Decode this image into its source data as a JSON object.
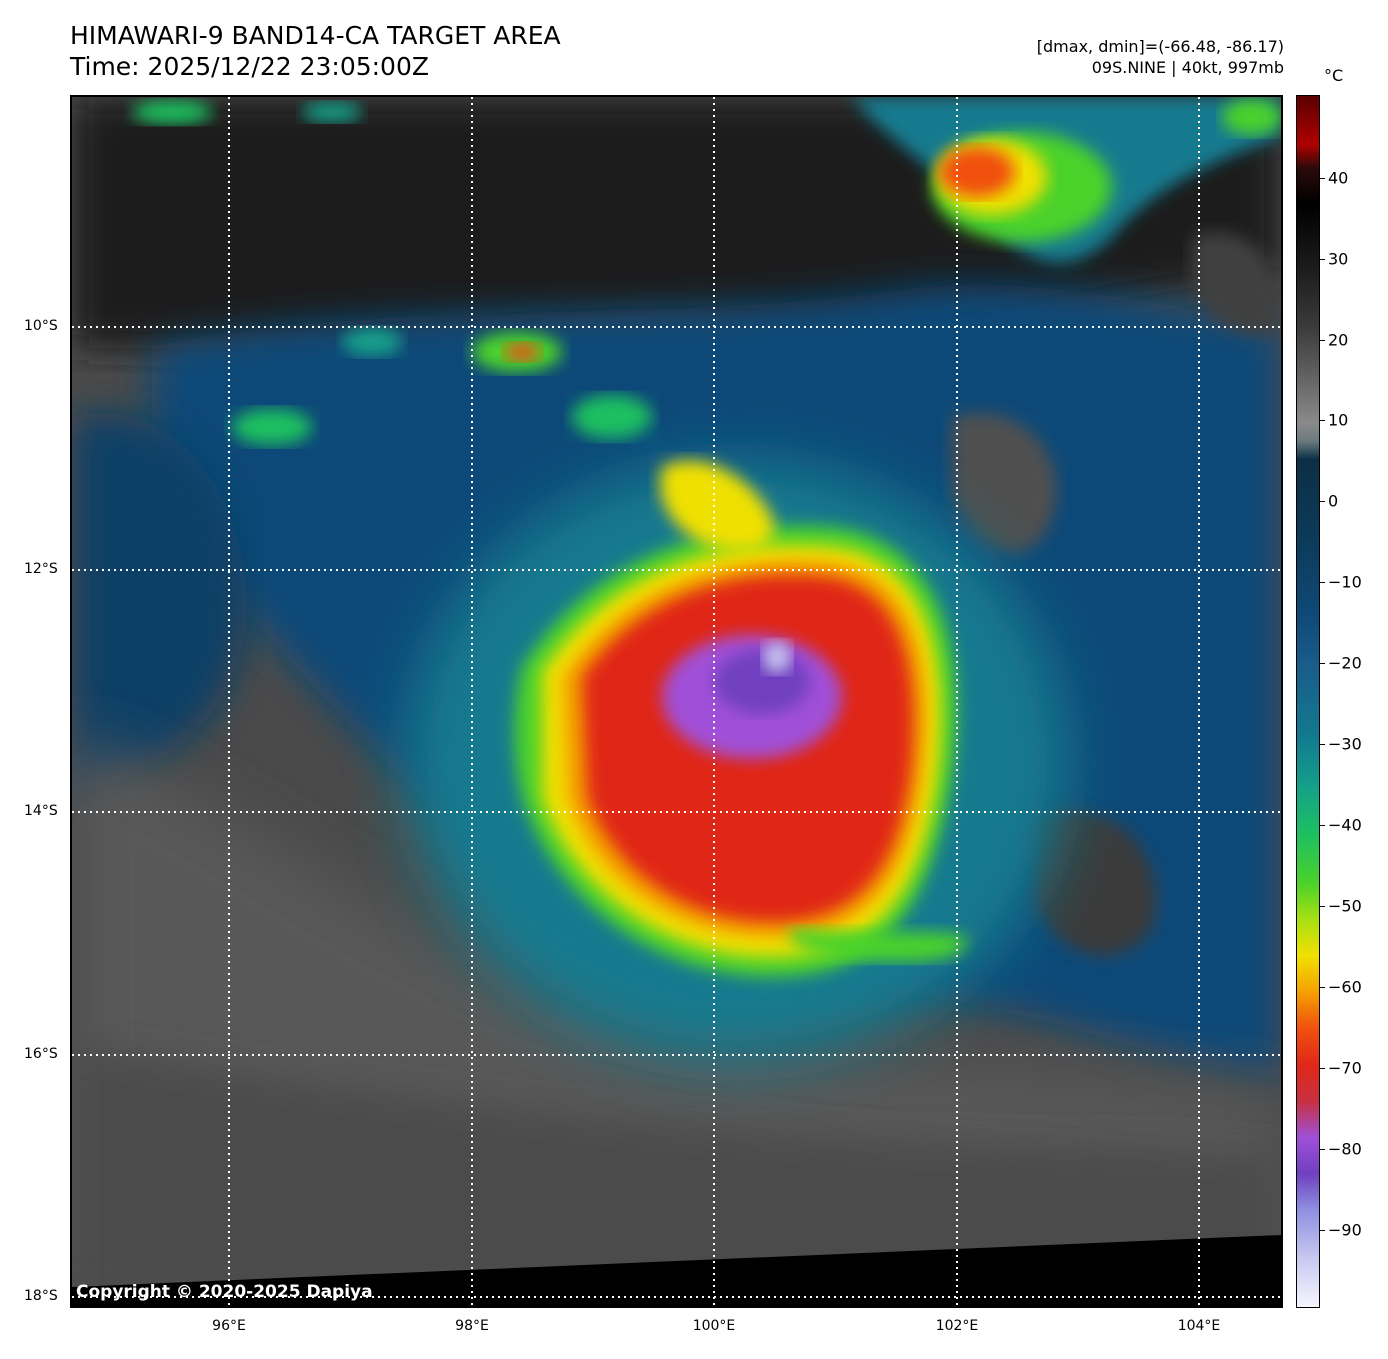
{
  "header": {
    "title_line1": "HIMAWARI-9 BAND14-CA TARGET AREA",
    "title_line2": "Time: 2025/12/22 23:05:00Z",
    "dminmax": "[dmax, dmin]=(-66.48, -86.17)",
    "storm": "09S.NINE | 40kt, 997mb"
  },
  "colorbar": {
    "unit": "°C",
    "ticks": [
      "40",
      "30",
      "20",
      "10",
      "0",
      "−10",
      "−20",
      "−30",
      "−40",
      "−50",
      "−60",
      "−70",
      "−80",
      "−90"
    ]
  },
  "axes": {
    "lat_labels": [
      "10°S",
      "12°S",
      "14°S",
      "16°S",
      "18°S"
    ],
    "lon_labels": [
      "96°E",
      "98°E",
      "100°E",
      "102°E",
      "104°E"
    ]
  },
  "copyright": "Copyright © 2020-2025 Dapiya",
  "colors": {
    "cold_core": "#7a50d0",
    "red_ring": "#e02818",
    "yellow_ring": "#f0e000",
    "green_ring": "#4bd22a",
    "ocean_cloud": "#0f4a78",
    "warm_gray": "#5a5a5a"
  }
}
